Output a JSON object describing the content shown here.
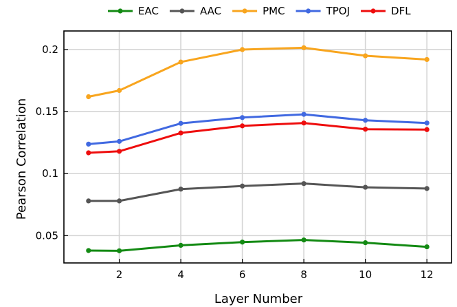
{
  "chart_data": {
    "type": "line",
    "xlabel": "Layer Number",
    "ylabel": "Pearson Correlation",
    "x": [
      1,
      2,
      4,
      6,
      8,
      10,
      12
    ],
    "xlim": [
      0.2,
      12.8
    ],
    "ylim": [
      0.028,
      0.215
    ],
    "xticks": [
      2,
      4,
      6,
      8,
      10,
      12
    ],
    "yticks": [
      0.05,
      0.1,
      0.15,
      0.2
    ],
    "ytick_labels": [
      "0.05",
      "0.1",
      "0.15",
      "0.2"
    ],
    "grid": true,
    "legend_position": "top",
    "series": [
      {
        "name": "EAC",
        "color": "#138a13",
        "values": [
          0.038,
          0.0378,
          0.0422,
          0.0448,
          0.0465,
          0.0443,
          0.041
        ]
      },
      {
        "name": "AAC",
        "color": "#555555",
        "values": [
          0.078,
          0.078,
          0.0875,
          0.09,
          0.092,
          0.089,
          0.088
        ]
      },
      {
        "name": "PMC",
        "color": "#f8a51e",
        "values": [
          0.162,
          0.167,
          0.19,
          0.2,
          0.2015,
          0.195,
          0.192
        ]
      },
      {
        "name": "TPOJ",
        "color": "#4169e1",
        "values": [
          0.1238,
          0.126,
          0.1405,
          0.1452,
          0.1478,
          0.143,
          0.1408
        ]
      },
      {
        "name": "DFL",
        "color": "#ee0d0d",
        "values": [
          0.1168,
          0.118,
          0.1328,
          0.1385,
          0.1408,
          0.1358,
          0.1355
        ]
      }
    ]
  }
}
